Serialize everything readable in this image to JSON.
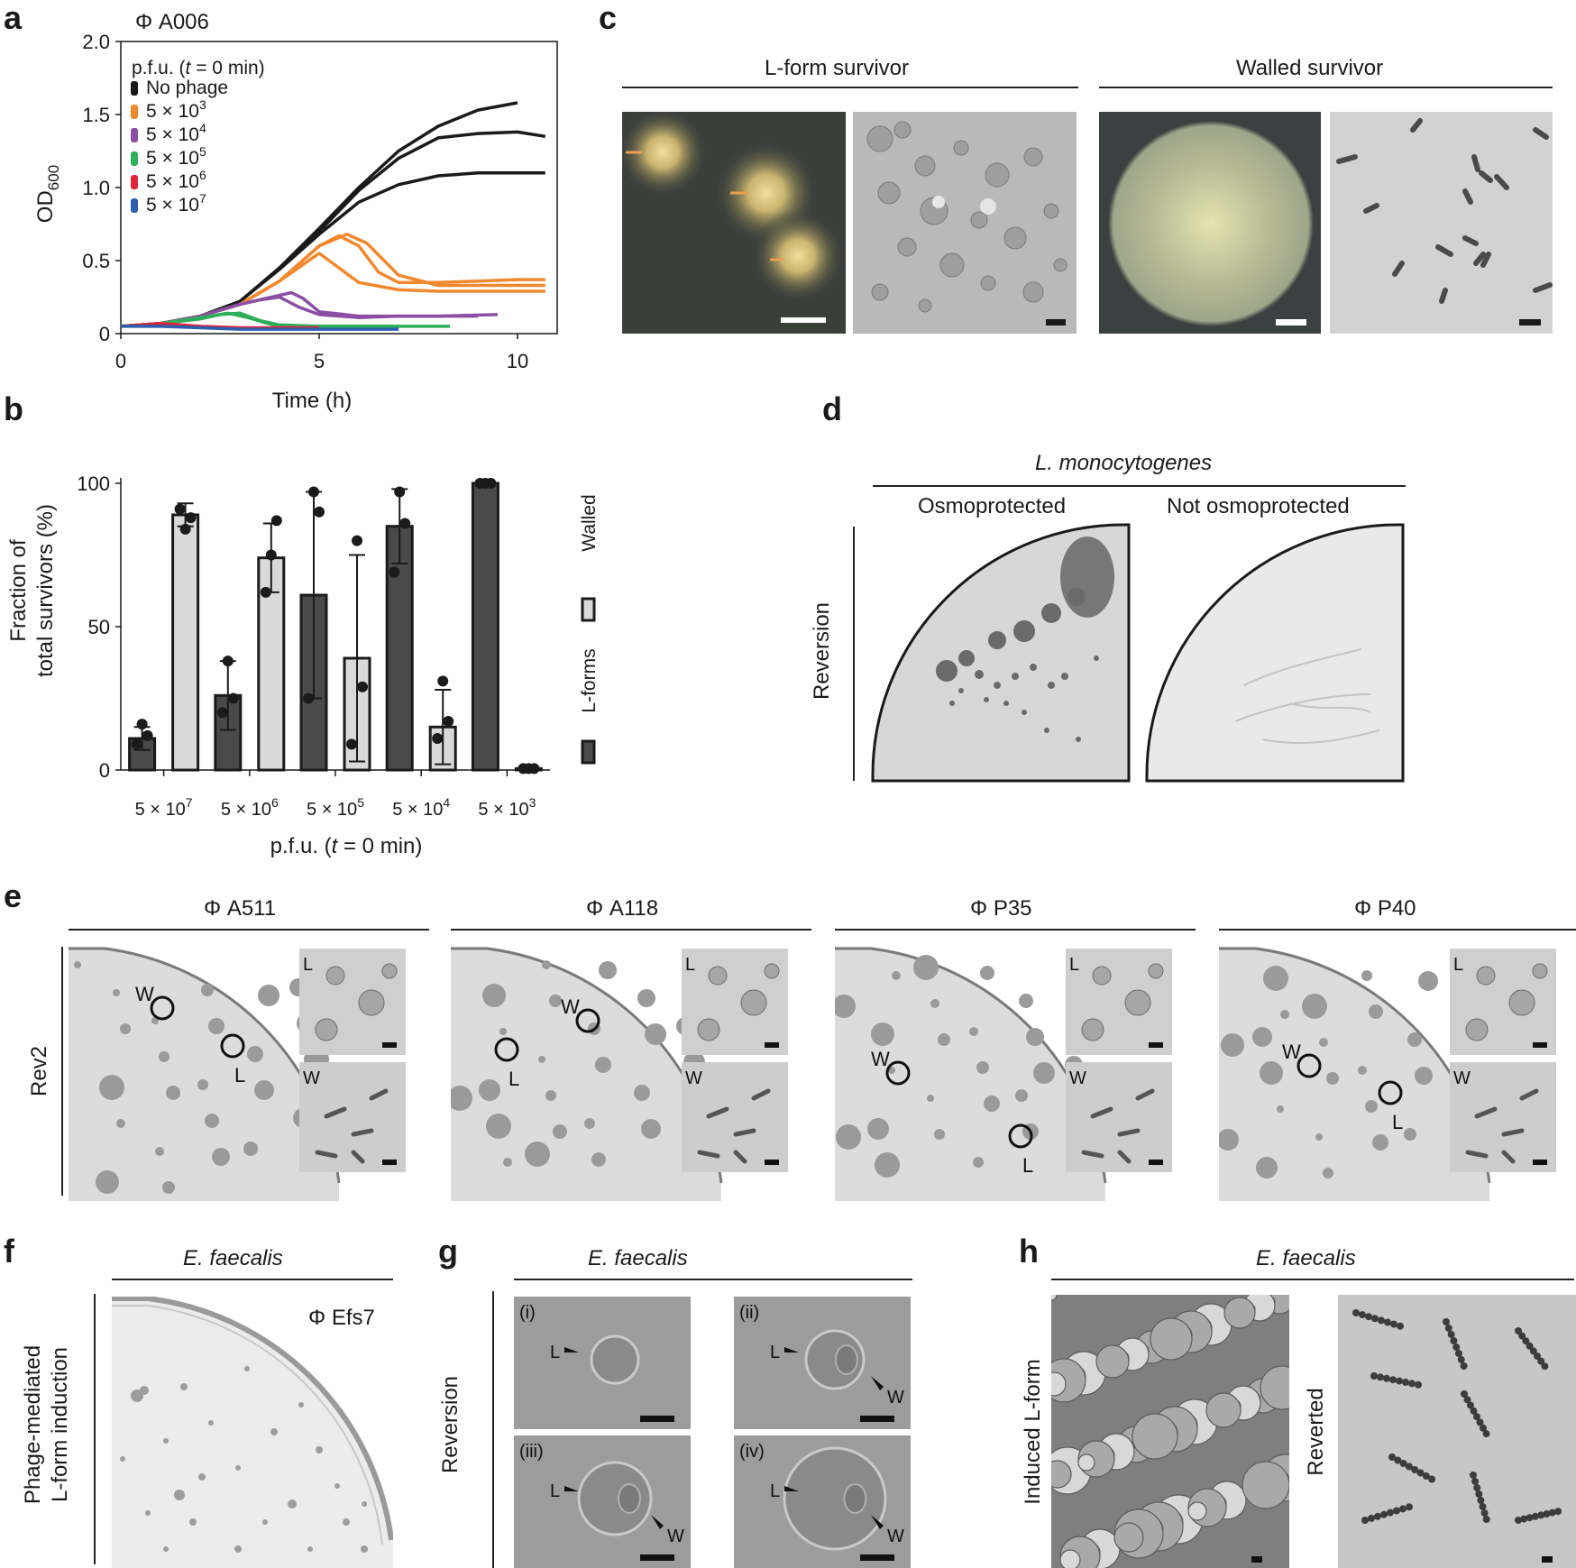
{
  "panels": {
    "a": "a",
    "b": "b",
    "c": "c",
    "d": "d",
    "e": "e",
    "f": "f",
    "g": "g",
    "h": "h"
  },
  "panel_a": {
    "phage_title": "Φ A006",
    "legend_title": "p.f.u. (t = 0 min)",
    "legend": [
      {
        "label": "No phage",
        "color": "#1a1a1a"
      },
      {
        "label": "5 × 10",
        "sup": "3",
        "color": "#f0882e"
      },
      {
        "label": "5 × 10",
        "sup": "4",
        "color": "#8a4ea3"
      },
      {
        "label": "5 × 10",
        "sup": "5",
        "color": "#2fae5a"
      },
      {
        "label": "5 × 10",
        "sup": "6",
        "color": "#e0263a"
      },
      {
        "label": "5 × 10",
        "sup": "7",
        "color": "#2b5fb0"
      }
    ],
    "y_label_main": "OD",
    "y_label_sub": "600",
    "x_label": "Time (h)",
    "y_ticks": [
      "0",
      "0.5",
      "1.0",
      "1.5",
      "2.0"
    ],
    "x_ticks": [
      "0",
      "5",
      "10"
    ]
  },
  "panel_b": {
    "y_label_1": "Fraction of",
    "y_label_2": "total survivors (%)",
    "x_label": "p.f.u. (t = 0 min)",
    "y_ticks": [
      "0",
      "50",
      "100"
    ],
    "legend_walled": "Walled",
    "legend_lforms": "L-forms",
    "colors": {
      "lform": "#4a4a4a",
      "walled": "#d9d9d9"
    }
  },
  "panel_c": {
    "lform_title": "L-form survivor",
    "walled_title": "Walled survivor"
  },
  "panel_d": {
    "species": "L. monocytogenes",
    "col1": "Osmoprotected",
    "col2": "Not osmoprotected",
    "row": "Reversion"
  },
  "panel_e": {
    "row": "Rev2",
    "phages": [
      "Φ A511",
      "Φ A118",
      "Φ P35",
      "Φ P40"
    ],
    "mark_w": "W",
    "mark_l": "L"
  },
  "panel_f": {
    "species": "E. faecalis",
    "phage": "Φ Efs7",
    "row_1": "Phage-mediated",
    "row_2": "L-form induction"
  },
  "panel_g": {
    "species": "E. faecalis",
    "row": "Reversion",
    "subs": [
      "(i)",
      "(ii)",
      "(iii)",
      "(iv)"
    ],
    "mark_l": "L",
    "mark_w": "W"
  },
  "panel_h": {
    "species": "E. faecalis",
    "left": "Induced L-form",
    "right": "Reverted"
  },
  "chart_data": [
    {
      "type": "line",
      "title": "Φ A006",
      "xlabel": "Time (h)",
      "ylabel": "OD600",
      "xlim": [
        0,
        11
      ],
      "ylim": [
        0,
        2.0
      ],
      "grid": false,
      "legend_title": "p.f.u. (t = 0 min)",
      "legend_position": "top-left",
      "series": [
        {
          "name": "No phage",
          "color": "#1a1a1a",
          "x": [
            0,
            1,
            2,
            3,
            4,
            5,
            6,
            7,
            8,
            9,
            10
          ],
          "y": [
            0.05,
            0.07,
            0.12,
            0.22,
            0.45,
            0.72,
            1.0,
            1.25,
            1.42,
            1.53,
            1.58
          ]
        },
        {
          "name": "No phage",
          "color": "#1a1a1a",
          "x": [
            0,
            1,
            2,
            3,
            4,
            5,
            6,
            7,
            8,
            9,
            10,
            10.7
          ],
          "y": [
            0.05,
            0.07,
            0.12,
            0.22,
            0.45,
            0.7,
            0.98,
            1.2,
            1.34,
            1.37,
            1.38,
            1.35
          ]
        },
        {
          "name": "No phage",
          "color": "#1a1a1a",
          "x": [
            0,
            1,
            2,
            3,
            4,
            5,
            6,
            7,
            8,
            9,
            10,
            10.7
          ],
          "y": [
            0.05,
            0.07,
            0.12,
            0.22,
            0.44,
            0.68,
            0.9,
            1.02,
            1.08,
            1.1,
            1.1,
            1.1
          ]
        },
        {
          "name": "5 × 10^3",
          "color": "#f0882e",
          "x": [
            0,
            1,
            2,
            3,
            4,
            5,
            5.5,
            6,
            6.5,
            7,
            8,
            9,
            10,
            10.7
          ],
          "y": [
            0.05,
            0.07,
            0.12,
            0.2,
            0.36,
            0.6,
            0.67,
            0.6,
            0.42,
            0.35,
            0.35,
            0.36,
            0.37,
            0.37
          ]
        },
        {
          "name": "5 × 10^3",
          "color": "#f0882e",
          "x": [
            0,
            1,
            2,
            3,
            4,
            5,
            5.7,
            6.2,
            7,
            8,
            9,
            10,
            10.7
          ],
          "y": [
            0.05,
            0.07,
            0.12,
            0.2,
            0.36,
            0.6,
            0.68,
            0.62,
            0.4,
            0.33,
            0.33,
            0.33,
            0.33
          ]
        },
        {
          "name": "5 × 10^3",
          "color": "#f0882e",
          "x": [
            0,
            1,
            2,
            3,
            4,
            5,
            5.5,
            6,
            7,
            8,
            9,
            10,
            10.7
          ],
          "y": [
            0.05,
            0.07,
            0.12,
            0.2,
            0.36,
            0.55,
            0.45,
            0.35,
            0.3,
            0.29,
            0.29,
            0.29,
            0.29
          ]
        },
        {
          "name": "5 × 10^4",
          "color": "#8a4ea3",
          "x": [
            0,
            1,
            2,
            3,
            3.5,
            4,
            4.5,
            5,
            6,
            7,
            8,
            9.5
          ],
          "y": [
            0.05,
            0.07,
            0.12,
            0.2,
            0.23,
            0.25,
            0.18,
            0.13,
            0.11,
            0.12,
            0.12,
            0.13
          ]
        },
        {
          "name": "5 × 10^4",
          "color": "#8a4ea3",
          "x": [
            0,
            1,
            2,
            3,
            3.8,
            4.3,
            4.6,
            5,
            6,
            7,
            8,
            9
          ],
          "y": [
            0.05,
            0.07,
            0.12,
            0.2,
            0.25,
            0.28,
            0.24,
            0.15,
            0.12,
            0.12,
            0.12,
            0.12
          ]
        },
        {
          "name": "5 × 10^5",
          "color": "#2fae5a",
          "x": [
            0,
            1,
            2,
            2.5,
            3,
            3.5,
            4,
            5,
            6,
            7,
            8,
            8.3
          ],
          "y": [
            0.05,
            0.07,
            0.1,
            0.13,
            0.14,
            0.09,
            0.06,
            0.05,
            0.05,
            0.05,
            0.05,
            0.05
          ]
        },
        {
          "name": "5 × 10^5",
          "color": "#2fae5a",
          "x": [
            0,
            1,
            2,
            2.7,
            3.2,
            3.7,
            4,
            5,
            6,
            7
          ],
          "y": [
            0.05,
            0.07,
            0.11,
            0.14,
            0.11,
            0.07,
            0.05,
            0.05,
            0.05,
            0.05
          ]
        },
        {
          "name": "5 × 10^6",
          "color": "#e0263a",
          "x": [
            0,
            1,
            1.5,
            2,
            3,
            4,
            5
          ],
          "y": [
            0.05,
            0.07,
            0.06,
            0.05,
            0.04,
            0.04,
            0.04
          ]
        },
        {
          "name": "5 × 10^7",
          "color": "#2b5fb0",
          "x": [
            0,
            1,
            2,
            3,
            4,
            5,
            6,
            7
          ],
          "y": [
            0.05,
            0.05,
            0.04,
            0.03,
            0.03,
            0.03,
            0.03,
            0.03
          ]
        }
      ]
    },
    {
      "type": "bar",
      "ylabel": "Fraction of total survivors (%)",
      "xlabel": "p.f.u. (t = 0 min)",
      "ylim": [
        0,
        100
      ],
      "categories": [
        "5 × 10^7",
        "5 × 10^6",
        "5 × 10^5",
        "5 × 10^4",
        "5 × 10^3"
      ],
      "category_base": "5 × 10",
      "category_sups": [
        "7",
        "6",
        "5",
        "4",
        "3"
      ],
      "series": [
        {
          "name": "L-forms",
          "values": [
            11,
            26,
            61,
            85,
            100
          ],
          "err": [
            4,
            12,
            36,
            13,
            0.5
          ],
          "points": [
            [
              9,
              16,
              12
            ],
            [
              20,
              38,
              25
            ],
            [
              25,
              97,
              90
            ],
            [
              69,
              97,
              86
            ],
            [
              100,
              100,
              100
            ]
          ]
        },
        {
          "name": "Walled",
          "values": [
            89,
            74,
            39,
            15,
            0.5
          ],
          "err": [
            4,
            12,
            36,
            13,
            0.5
          ],
          "points": [
            [
              91,
              84,
              88
            ],
            [
              62,
              75,
              87
            ],
            [
              9,
              80,
              29
            ],
            [
              11,
              31,
              17
            ],
            [
              0.5,
              0.5,
              0.5
            ]
          ]
        }
      ]
    }
  ]
}
